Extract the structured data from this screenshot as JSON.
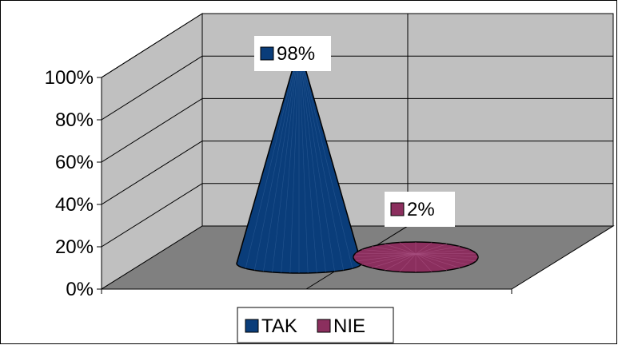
{
  "chart_data": {
    "type": "bar",
    "style": "3d-cone",
    "categories": [
      ""
    ],
    "series": [
      {
        "name": "TAK",
        "values": [
          98
        ],
        "color": "#0A3D7A",
        "value_label": "98%"
      },
      {
        "name": "NIE",
        "values": [
          2
        ],
        "color": "#8B2F5E",
        "value_label": "2%"
      }
    ],
    "ylim": [
      0,
      100
    ],
    "yticks": [
      "0%",
      "20%",
      "40%",
      "60%",
      "80%",
      "100%"
    ],
    "grid": true,
    "legend_position": "bottom",
    "wall_color": "#C0C0C0",
    "floor_color": "#808080"
  }
}
